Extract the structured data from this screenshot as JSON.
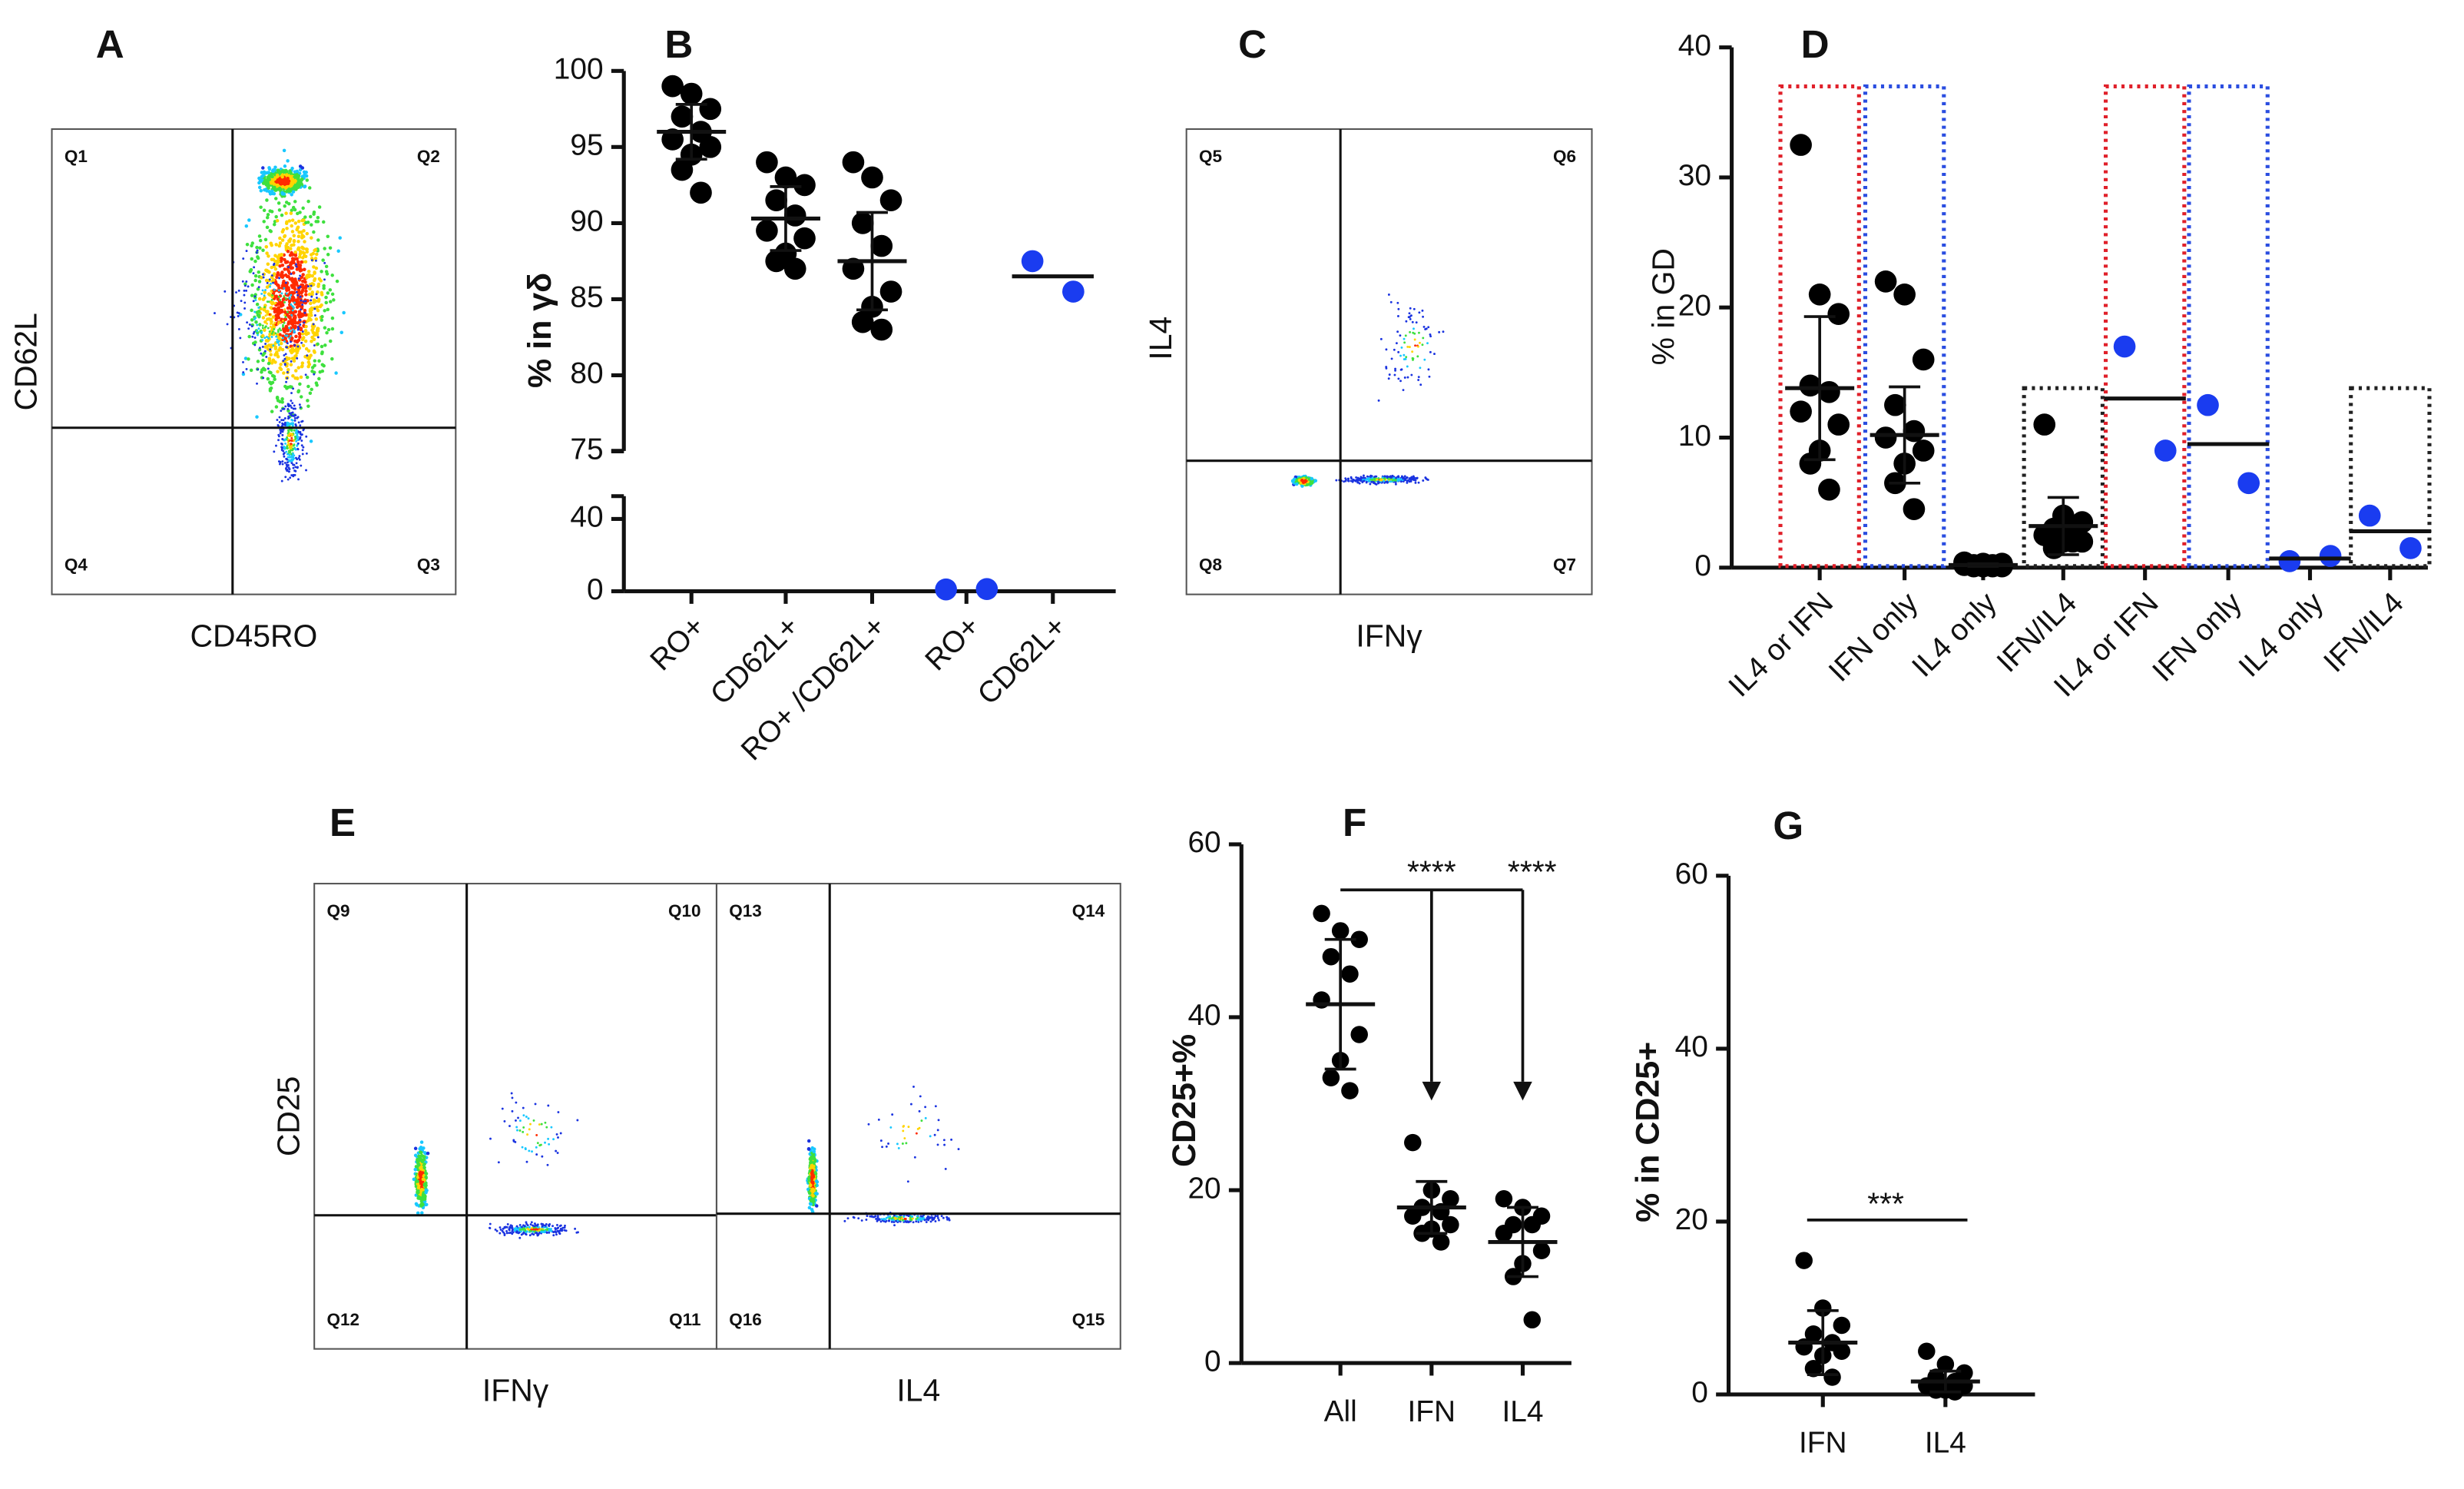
{
  "chart_data": [
    {
      "type": "flow",
      "label": "A",
      "x_label": "CD45RO",
      "y_label": "CD62L",
      "quadrants": [
        "Q1",
        "Q2",
        "Q3",
        "Q4"
      ]
    },
    {
      "type": "dotplot",
      "label": "B",
      "y_label": "% in γδ",
      "ylim": [
        0,
        100
      ],
      "y_break": [
        50,
        74
      ],
      "yticks": [
        0,
        40,
        75,
        80,
        85,
        90,
        95,
        100
      ],
      "categories": [
        "RO+",
        "CD62L+",
        "RO+ /CD62L+",
        "RO+",
        "CD62L+"
      ],
      "groups": [
        {
          "color": "#000000",
          "points": [
            99,
            98.5,
            97.5,
            97,
            96,
            95.5,
            95,
            94.5,
            93.5,
            92
          ],
          "mean": 96,
          "sd": 1.8
        },
        {
          "color": "#000000",
          "points": [
            94,
            93,
            92.5,
            91.5,
            90.5,
            89.5,
            89,
            88,
            87.5,
            87
          ],
          "mean": 90.3,
          "sd": 2.1
        },
        {
          "color": "#000000",
          "points": [
            94,
            93,
            91.5,
            90,
            88.5,
            87,
            85.5,
            84.5,
            83.5,
            83
          ],
          "mean": 87.5,
          "sd": 3.2
        },
        {
          "color": "#1a3cf0",
          "points": [
            1,
            1.2
          ]
        },
        {
          "color": "#1a3cf0",
          "points": [
            87.5,
            85.5
          ],
          "mean": 86.5
        }
      ]
    },
    {
      "type": "flow",
      "label": "C",
      "x_label": "IFNγ",
      "y_label": "IL4",
      "quadrants": [
        "Q5",
        "Q6",
        "Q7",
        "Q8"
      ]
    },
    {
      "type": "dotplot",
      "label": "D",
      "y_label": "% in GD",
      "ylim": [
        0,
        40
      ],
      "yticks": [
        0,
        10,
        20,
        30,
        40
      ],
      "categories": [
        "IL4 or IFN",
        "IFN only",
        "IL4 only",
        "IFN/IL4",
        "IL4 or IFN",
        "IFN only",
        "IL4 only",
        "IFN/IL4"
      ],
      "groups": [
        {
          "color": "#000000",
          "points": [
            32.5,
            21,
            19.5,
            14,
            13.5,
            12,
            11,
            9,
            8,
            6
          ],
          "mean": 13.8,
          "sd": 5.5
        },
        {
          "color": "#000000",
          "points": [
            22,
            21,
            16,
            12.5,
            10.5,
            10,
            9,
            8,
            6.5,
            4.5
          ],
          "mean": 10.2,
          "sd": 3.7
        },
        {
          "color": "#000000",
          "points": [
            0.4,
            0.3,
            0.3,
            0.2,
            0.2,
            0.2,
            0.1,
            0.1,
            0.1,
            0.1
          ],
          "mean": 0.2,
          "sd": 0.1
        },
        {
          "color": "#000000",
          "points": [
            11,
            4,
            3.5,
            3,
            3,
            2.5,
            2,
            2,
            1.5,
            2
          ],
          "mean": 3.2,
          "sd": 2.2
        },
        {
          "color": "#1a3cf0",
          "points": [
            17,
            9
          ],
          "mean": 13
        },
        {
          "color": "#1a3cf0",
          "points": [
            12.5,
            6.5
          ],
          "mean": 9.5
        },
        {
          "color": "#1a3cf0",
          "points": [
            0.5,
            0.9
          ],
          "mean": 0.7
        },
        {
          "color": "#1a3cf0",
          "points": [
            4,
            1.5
          ],
          "mean": 2.8
        }
      ],
      "highlight_boxes": [
        {
          "category_index": 0,
          "color": "#e0202a",
          "ymax": 37
        },
        {
          "category_index": 1,
          "color": "#2a4de0",
          "ymax": 37
        },
        {
          "category_index": 3,
          "color": "#222222",
          "ymax": 13.8
        },
        {
          "category_index": 4,
          "color": "#e0202a",
          "ymax": 37
        },
        {
          "category_index": 5,
          "color": "#2a4de0",
          "ymax": 37
        },
        {
          "category_index": 7,
          "color": "#222222",
          "ymax": 13.8
        }
      ]
    },
    {
      "type": "flow",
      "label": "E",
      "y_label": "CD25",
      "panels": [
        {
          "x_label": "IFNγ",
          "quadrants": [
            "Q9",
            "Q10",
            "Q11",
            "Q12"
          ]
        },
        {
          "x_label": "IL4",
          "quadrants": [
            "Q13",
            "Q14",
            "Q15",
            "Q16"
          ]
        }
      ]
    },
    {
      "type": "dotplot",
      "label": "F",
      "y_label": "CD25+%",
      "ylim": [
        0,
        60
      ],
      "yticks": [
        0,
        20,
        40,
        60
      ],
      "categories": [
        "All",
        "IFN",
        "IL4"
      ],
      "groups": [
        {
          "color": "#000000",
          "points": [
            52,
            50,
            49,
            47,
            45,
            42,
            38,
            35,
            33,
            31.5
          ],
          "mean": 41.5,
          "sd": 7.5
        },
        {
          "color": "#000000",
          "points": [
            25.5,
            20,
            19,
            18,
            17.5,
            17,
            16,
            15.5,
            15,
            14
          ],
          "mean": 18,
          "sd": 3
        },
        {
          "color": "#000000",
          "points": [
            19,
            18,
            17,
            16,
            16,
            15,
            13,
            11.5,
            10,
            5
          ],
          "mean": 14,
          "sd": 4
        }
      ],
      "annotations": [
        "****",
        "****"
      ]
    },
    {
      "type": "dotplot",
      "label": "G",
      "y_label": "% in CD25+",
      "ylim": [
        0,
        60
      ],
      "yticks": [
        0,
        20,
        40,
        60
      ],
      "categories": [
        "IFN",
        "IL4"
      ],
      "groups": [
        {
          "color": "#000000",
          "points": [
            15.5,
            10,
            8,
            7,
            6,
            5.5,
            5,
            4.5,
            3,
            2
          ],
          "mean": 6,
          "sd": 3.7
        },
        {
          "color": "#000000",
          "points": [
            5,
            3.5,
            2.5,
            2,
            1.5,
            1,
            1,
            0.5,
            0.5,
            0.3
          ],
          "mean": 1.5,
          "sd": 1.2
        }
      ],
      "annotations": [
        "***"
      ]
    }
  ]
}
